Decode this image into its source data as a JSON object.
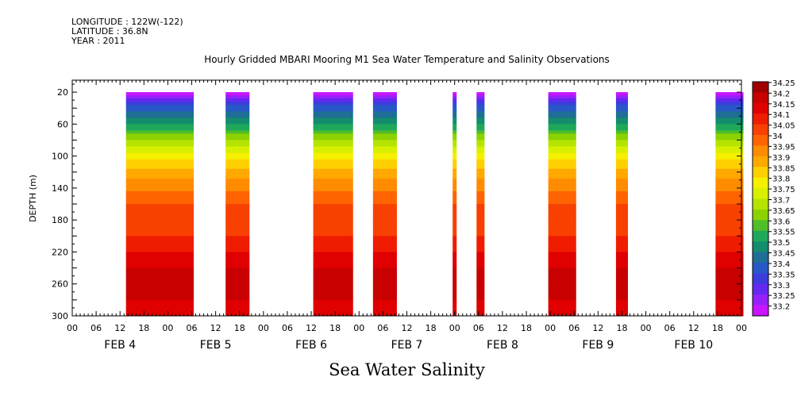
{
  "header": {
    "longitude": "LONGITUDE : 122W(-122)",
    "latitude": "LATITUDE : 36.8N",
    "year": "YEAR : 2011"
  },
  "chart_data": {
    "type": "heatmap",
    "title": "Hourly Gridded MBARI Mooring M1 Sea Water Temperature and Salinity Observations",
    "xlabel": "Sea Water Salinity",
    "ylabel": "DEPTH (m)",
    "x_unit": "hours since FEB 4 00:00",
    "xlim": [
      0,
      168
    ],
    "ylim": [
      300,
      5
    ],
    "y_ticks": [
      20,
      60,
      100,
      140,
      180,
      220,
      260,
      300
    ],
    "x_tick_labels": [
      "00",
      "06",
      "12",
      "18",
      "00",
      "06",
      "12",
      "18",
      "00",
      "06",
      "12",
      "18",
      "00",
      "06",
      "12",
      "18",
      "00",
      "06",
      "12",
      "18",
      "00",
      "06",
      "12",
      "18",
      "00",
      "06",
      "12",
      "18",
      "00"
    ],
    "day_labels": [
      "FEB  4",
      "FEB  5",
      "FEB  6",
      "FEB  7",
      "FEB  8",
      "FEB  9",
      "FEB 10"
    ],
    "colorbar": {
      "levels": [
        34.25,
        34.2,
        34.15,
        34.1,
        34.05,
        34,
        33.95,
        33.9,
        33.85,
        33.8,
        33.75,
        33.7,
        33.65,
        33.6,
        33.55,
        33.5,
        33.45,
        33.4,
        33.35,
        33.3,
        33.25,
        33.2
      ],
      "colors": [
        "#a00000",
        "#c80000",
        "#e00000",
        "#f01c00",
        "#f84000",
        "#ff6400",
        "#ff8c00",
        "#ffa800",
        "#ffd000",
        "#f4f000",
        "#d8f000",
        "#b4e400",
        "#8cd200",
        "#50be28",
        "#1ea85a",
        "#148c6e",
        "#1e6e96",
        "#2858c8",
        "#3c3cdc",
        "#6428f0",
        "#9620f8",
        "#c814ff"
      ]
    },
    "segments": [
      {
        "start": 13.5,
        "end": 30.5,
        "label": "FEB 4 13h – FEB 5 06h"
      },
      {
        "start": 38.5,
        "end": 44.5,
        "label": "FEB 5 14h – FEB 5 20h"
      },
      {
        "start": 60.5,
        "end": 70.5,
        "label": "FEB 6 12h – FEB 6 22h"
      },
      {
        "start": 75.5,
        "end": 81.5,
        "label": "FEB 7 03h – FEB 7 09h"
      },
      {
        "start": 95.5,
        "end": 96.5,
        "label": "FEB 7 23h"
      },
      {
        "start": 101.5,
        "end": 103.5,
        "label": "FEB 8 05h – FEB 8 07h"
      },
      {
        "start": 119.5,
        "end": 126.5,
        "label": "FEB 8 23h – FEB 9 06h"
      },
      {
        "start": 136.5,
        "end": 139.5,
        "label": "FEB 9 16h – FEB 9 19h"
      },
      {
        "start": 161.5,
        "end": 168.5,
        "label": "FEB 10 17h – FEB 11 00h"
      }
    ],
    "salinity_profile": [
      {
        "depth": 20,
        "value": 33.22
      },
      {
        "depth": 40,
        "value": 33.42
      },
      {
        "depth": 60,
        "value": 33.55
      },
      {
        "depth": 80,
        "value": 33.7
      },
      {
        "depth": 100,
        "value": 33.82
      },
      {
        "depth": 120,
        "value": 33.92
      },
      {
        "depth": 140,
        "value": 33.98
      },
      {
        "depth": 160,
        "value": 34.05
      },
      {
        "depth": 180,
        "value": 34.07
      },
      {
        "depth": 200,
        "value": 34.1
      },
      {
        "depth": 220,
        "value": 34.15
      },
      {
        "depth": 240,
        "value": 34.2
      },
      {
        "depth": 260,
        "value": 34.24
      },
      {
        "depth": 280,
        "value": 34.2
      },
      {
        "depth": 300,
        "value": 34.15
      }
    ]
  }
}
